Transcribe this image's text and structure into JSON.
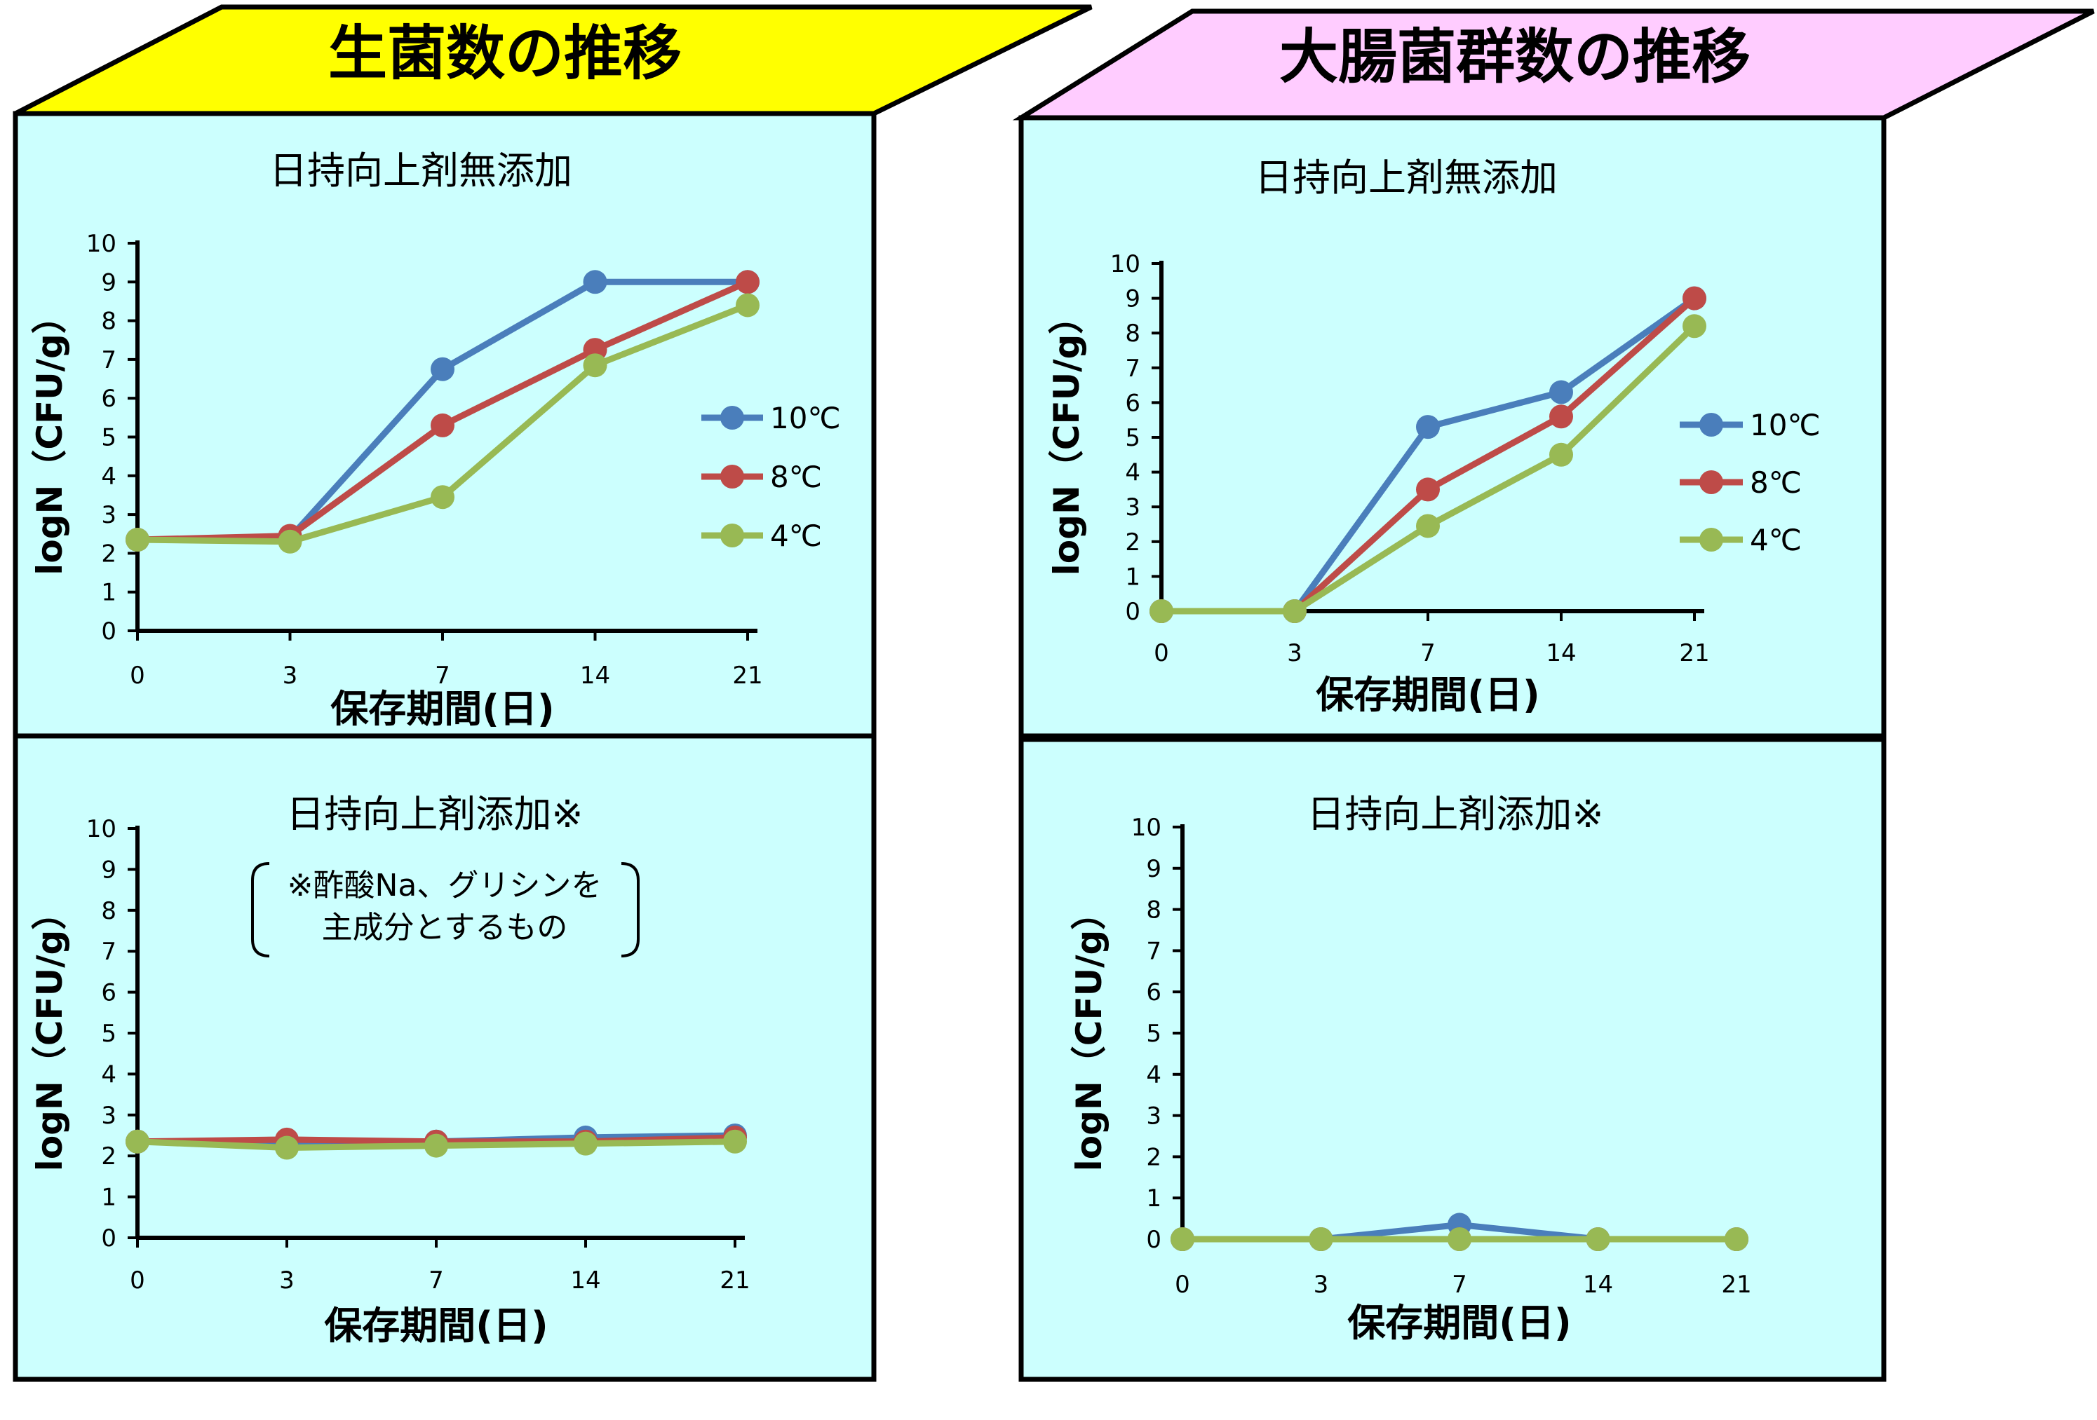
{
  "colors": {
    "series_10": "#4a7ebb",
    "series_8": "#be4b48",
    "series_4": "#98b954",
    "panel_bg": "#ccfffe",
    "left_header": "#ffff00",
    "right_header": "#ffccff",
    "border": "#000000"
  },
  "headers": {
    "left": "生菌数の推移",
    "right": "大腸菌群数の推移"
  },
  "legend": [
    "10℃",
    "8℃",
    "4℃"
  ],
  "note": {
    "line1": "※酢酸Na、グリシンを",
    "line2": "主成分とするもの"
  },
  "chart_data": [
    {
      "type": "line",
      "title": "日持向上剤無添加",
      "xlabel": "保存期間(日)",
      "ylabel": "logN（CFU/g）",
      "categories": [
        "0",
        "3",
        "7",
        "14",
        "21"
      ],
      "yticks": [
        "0",
        "1",
        "2",
        "3",
        "4",
        "5",
        "6",
        "7",
        "8",
        "9",
        "10"
      ],
      "ylim": [
        0,
        10
      ],
      "legend": "right",
      "series": [
        {
          "name": "10℃",
          "values": [
            2.35,
            2.4,
            6.75,
            9.0,
            9.0
          ]
        },
        {
          "name": "8℃",
          "values": [
            2.35,
            2.45,
            5.3,
            7.25,
            9.0
          ]
        },
        {
          "name": "4℃",
          "values": [
            2.35,
            2.3,
            3.45,
            6.85,
            8.4
          ]
        }
      ]
    },
    {
      "type": "line",
      "title": "日持向上剤添加※",
      "xlabel": "保存期間(日)",
      "ylabel": "logN（CFU/g）",
      "categories": [
        "0",
        "3",
        "7",
        "14",
        "21"
      ],
      "yticks": [
        "0",
        "1",
        "2",
        "3",
        "4",
        "5",
        "6",
        "7",
        "8",
        "9",
        "10"
      ],
      "ylim": [
        0,
        10
      ],
      "series": [
        {
          "name": "10℃",
          "values": [
            2.35,
            2.3,
            2.35,
            2.45,
            2.5
          ]
        },
        {
          "name": "8℃",
          "values": [
            2.35,
            2.4,
            2.35,
            2.35,
            2.45
          ]
        },
        {
          "name": "4℃",
          "values": [
            2.35,
            2.2,
            2.25,
            2.3,
            2.35
          ]
        }
      ]
    },
    {
      "type": "line",
      "title": "日持向上剤無添加",
      "xlabel": "保存期間(日)",
      "ylabel": "logN（CFU/g）",
      "categories": [
        "0",
        "3",
        "7",
        "14",
        "21"
      ],
      "yticks": [
        "0",
        "1",
        "2",
        "3",
        "4",
        "5",
        "6",
        "7",
        "8",
        "9",
        "10"
      ],
      "ylim": [
        0,
        10
      ],
      "legend": "right",
      "series": [
        {
          "name": "10℃",
          "values": [
            0,
            0,
            5.3,
            6.3,
            9.0
          ]
        },
        {
          "name": "8℃",
          "values": [
            0,
            0,
            3.5,
            5.6,
            9.0
          ]
        },
        {
          "name": "4℃",
          "values": [
            0,
            0,
            2.45,
            4.5,
            8.2
          ]
        }
      ]
    },
    {
      "type": "line",
      "title": "日持向上剤添加※",
      "xlabel": "保存期間(日)",
      "ylabel": "logN（CFU/g）",
      "categories": [
        "0",
        "3",
        "7",
        "14",
        "21"
      ],
      "yticks": [
        "0",
        "1",
        "2",
        "3",
        "4",
        "5",
        "6",
        "7",
        "8",
        "9",
        "10"
      ],
      "ylim": [
        0,
        10
      ],
      "series": [
        {
          "name": "10℃",
          "values": [
            0,
            0,
            0.35,
            0,
            0
          ]
        },
        {
          "name": "8℃",
          "values": [
            0,
            0,
            0,
            0,
            0
          ]
        },
        {
          "name": "4℃",
          "values": [
            0,
            0,
            0,
            0,
            0
          ]
        }
      ]
    }
  ]
}
